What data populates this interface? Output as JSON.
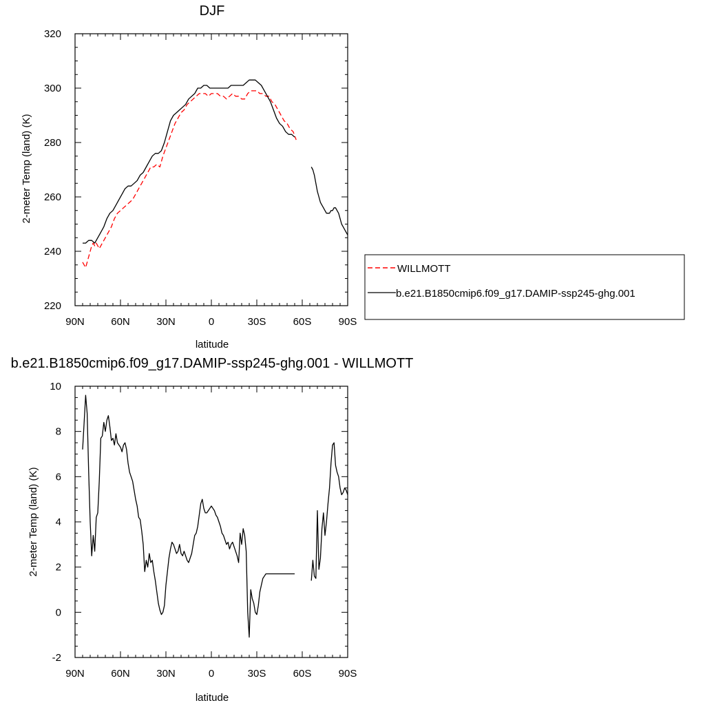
{
  "chart_data": [
    {
      "type": "line",
      "title": "DJF",
      "xlabel": "latitude",
      "ylabel": "2-meter Temp (land) (K)",
      "xlim": [
        90,
        -90
      ],
      "ylim": [
        220,
        320
      ],
      "xticks": [
        90,
        60,
        30,
        0,
        -30,
        -60,
        -90
      ],
      "xtick_labels": [
        "90N",
        "60N",
        "30N",
        "0",
        "30S",
        "60S",
        "90S"
      ],
      "yticks": [
        220,
        240,
        260,
        280,
        300,
        320
      ],
      "ytick_labels": [
        "220",
        "240",
        "260",
        "280",
        "300",
        "320"
      ],
      "grid": false,
      "legend_position": "right",
      "series": [
        {
          "name": "WILLMOTT",
          "color": "#ff0000",
          "dash": "dashed",
          "segments": [
            {
              "x": [
                85,
                84,
                83,
                82,
                81,
                80,
                79,
                78,
                77,
                76,
                75,
                74,
                72,
                70,
                68,
                66,
                64,
                62,
                60,
                58,
                56,
                54,
                52,
                50,
                48,
                46,
                44,
                42,
                40,
                38,
                36,
                34,
                32,
                30,
                28,
                26,
                24,
                22,
                20,
                18,
                16,
                14,
                12,
                10,
                8,
                6,
                4,
                2,
                0,
                -2,
                -4,
                -6,
                -8,
                -10,
                -12,
                -14,
                -16,
                -18,
                -20,
                -22,
                -24,
                -26,
                -28,
                -30,
                -32,
                -34,
                -36,
                -38,
                -40,
                -42,
                -44,
                -46,
                -48,
                -50,
                -52,
                -54,
                -56
              ],
              "y": [
                236,
                235,
                234,
                236,
                238,
                240,
                242,
                243,
                242,
                243,
                242,
                241,
                243,
                245,
                247,
                249,
                252,
                254,
                255,
                256,
                257,
                258,
                259,
                261,
                263,
                265,
                267,
                269,
                271,
                271,
                272,
                271,
                275,
                278,
                281,
                284,
                287,
                289,
                291,
                292,
                294,
                295,
                296,
                297,
                298,
                298,
                298,
                297,
                298,
                298,
                298,
                297,
                297,
                296,
                297,
                298,
                297,
                297,
                296,
                296,
                298,
                299,
                299,
                299,
                298,
                298,
                297,
                297,
                295,
                294,
                292,
                290,
                288,
                287,
                285,
                284,
                281
              ]
            }
          ]
        },
        {
          "name": "b.e21.B1850cmip6.f09_g17.DAMIP-ssp245-ghg.001",
          "color": "#000000",
          "dash": "solid",
          "segments": [
            {
              "x": [
                85,
                83,
                81,
                79,
                77,
                75,
                73,
                71,
                69,
                67,
                65,
                63,
                61,
                59,
                57,
                55,
                53,
                51,
                49,
                47,
                45,
                43,
                41,
                39,
                37,
                35,
                33,
                31,
                29,
                27,
                25,
                23,
                21,
                19,
                17,
                15,
                13,
                11,
                9,
                7,
                5,
                3,
                1,
                -1,
                -3,
                -5,
                -7,
                -9,
                -11,
                -13,
                -15,
                -17,
                -19,
                -21,
                -23,
                -25,
                -27,
                -29,
                -31,
                -33,
                -35,
                -37,
                -39,
                -41,
                -43,
                -45,
                -47,
                -49,
                -51,
                -53,
                -55
              ],
              "y": [
                243,
                243,
                244,
                244,
                243,
                245,
                247,
                249,
                252,
                254,
                255,
                257,
                259,
                261,
                263,
                264,
                264,
                265,
                266,
                268,
                269,
                271,
                273,
                275,
                276,
                276,
                277,
                280,
                284,
                288,
                290,
                291,
                292,
                293,
                294,
                296,
                297,
                298,
                300,
                300,
                301,
                301,
                300,
                300,
                300,
                300,
                300,
                300,
                300,
                301,
                301,
                301,
                301,
                301,
                302,
                303,
                303,
                303,
                302,
                301,
                299,
                297,
                295,
                292,
                289,
                287,
                286,
                284,
                283,
                283,
                282
              ]
            },
            {
              "x": [
                -66,
                -67,
                -68,
                -69,
                -70,
                -71,
                -72,
                -73,
                -74,
                -75,
                -76,
                -77,
                -78,
                -79,
                -80,
                -81,
                -82,
                -83,
                -84,
                -85,
                -86,
                -87,
                -88,
                -89,
                -90
              ],
              "y": [
                271,
                270,
                268,
                265,
                262,
                260,
                258,
                257,
                256,
                255,
                254,
                254,
                254,
                255,
                255,
                256,
                256,
                255,
                254,
                252,
                250,
                249,
                248,
                247,
                246
              ]
            }
          ]
        }
      ]
    },
    {
      "type": "line",
      "title": "b.e21.B1850cmip6.f09_g17.DAMIP-ssp245-ghg.001 - WILLMOTT",
      "xlabel": "latitude",
      "ylabel": "2-meter Temp (land) (K)",
      "xlim": [
        90,
        -90
      ],
      "ylim": [
        -2,
        10
      ],
      "xticks": [
        90,
        60,
        30,
        0,
        -30,
        -60,
        -90
      ],
      "xtick_labels": [
        "90N",
        "60N",
        "30N",
        "0",
        "30S",
        "60S",
        "90S"
      ],
      "yticks": [
        -2,
        0,
        2,
        4,
        6,
        8,
        10
      ],
      "ytick_labels": [
        "-2",
        "0",
        "2",
        "4",
        "6",
        "8",
        "10"
      ],
      "grid": false,
      "series": [
        {
          "color": "#000000",
          "dash": "solid",
          "segments": [
            {
              "x": [
                85,
                84,
                83,
                82,
                81,
                80,
                79,
                78,
                77,
                76,
                75,
                74,
                73,
                72,
                71,
                70,
                69,
                68,
                67,
                66,
                65,
                64,
                63,
                62,
                61,
                60,
                59,
                58,
                57,
                56,
                55,
                54,
                53,
                52,
                51,
                50,
                49,
                48,
                47,
                46,
                45,
                44,
                43,
                42,
                41,
                40,
                39,
                38,
                37,
                36,
                35,
                34,
                33,
                32,
                31,
                30,
                29,
                28,
                27,
                26,
                25,
                24,
                23,
                22,
                21,
                20,
                19,
                18,
                17,
                16,
                15,
                14,
                13,
                12,
                11,
                10,
                9,
                8,
                7,
                6,
                5,
                4,
                3,
                2,
                1,
                0,
                -1,
                -2,
                -3,
                -4,
                -5,
                -6,
                -7,
                -8,
                -9,
                -10,
                -11,
                -12,
                -13,
                -14,
                -15,
                -16,
                -17,
                -18,
                -19,
                -20,
                -21,
                -22,
                -23,
                -24,
                -25,
                -26,
                -27,
                -28,
                -29,
                -30,
                -31,
                -32,
                -33,
                -34,
                -35,
                -36,
                -37,
                -38,
                -39,
                -40,
                -41,
                -42,
                -43,
                -44,
                -45,
                -46,
                -47,
                -48,
                -49,
                -50,
                -51,
                -52,
                -53,
                -54,
                -55
              ],
              "y": [
                7.2,
                8.4,
                9.6,
                8.8,
                6.2,
                4.0,
                2.5,
                3.4,
                2.7,
                4.2,
                4.4,
                5.8,
                7.7,
                7.8,
                8.4,
                8.0,
                8.5,
                8.7,
                8.2,
                7.6,
                7.7,
                7.4,
                7.9,
                7.5,
                7.4,
                7.3,
                7.1,
                7.4,
                7.5,
                7.2,
                6.6,
                6.2,
                6.0,
                5.8,
                5.4,
                5.0,
                4.7,
                4.2,
                4.1,
                3.6,
                3.0,
                1.8,
                2.3,
                2.0,
                2.6,
                2.2,
                2.3,
                1.8,
                1.4,
                0.9,
                0.4,
                0.1,
                -0.1,
                0.0,
                0.3,
                1.2,
                1.8,
                2.4,
                2.8,
                3.1,
                3.0,
                2.8,
                2.6,
                2.7,
                3.0,
                2.6,
                2.5,
                2.7,
                2.5,
                2.3,
                2.2,
                2.4,
                2.6,
                3.0,
                3.4,
                3.5,
                3.8,
                4.3,
                4.8,
                5.0,
                4.6,
                4.4,
                4.4,
                4.5,
                4.6,
                4.7,
                4.6,
                4.5,
                4.3,
                4.2,
                4.0,
                3.8,
                3.5,
                3.4,
                3.2,
                3.0,
                3.1,
                2.8,
                3.0,
                3.1,
                2.9,
                2.7,
                2.5,
                2.2,
                3.5,
                3.0,
                3.7,
                3.4,
                2.7,
                0.0,
                -1.1,
                1.0,
                0.6,
                0.4,
                0.0,
                -0.1,
                0.3,
                0.9,
                1.2,
                1.5,
                1.6,
                1.7,
                1.7,
                1.7,
                1.7,
                1.7,
                1.7,
                1.7,
                1.7,
                1.7,
                1.7,
                1.7,
                1.7,
                1.7,
                1.7,
                1.7,
                1.7,
                1.7,
                1.7,
                1.7,
                1.7
              ]
            },
            {
              "x": [
                -66,
                -67,
                -68,
                -69,
                -70,
                -71,
                -72,
                -73,
                -74,
                -75,
                -76,
                -77,
                -78,
                -79,
                -80,
                -81,
                -82,
                -83,
                -84,
                -85,
                -86,
                -87,
                -88,
                -89,
                -90
              ],
              "y": [
                1.4,
                2.3,
                1.6,
                1.5,
                4.5,
                1.9,
                2.4,
                3.7,
                4.4,
                3.4,
                4.0,
                4.8,
                5.5,
                6.6,
                7.4,
                7.5,
                6.5,
                6.2,
                6.0,
                5.5,
                5.2,
                5.3,
                5.5,
                5.4,
                5.2
              ]
            }
          ]
        }
      ]
    }
  ]
}
